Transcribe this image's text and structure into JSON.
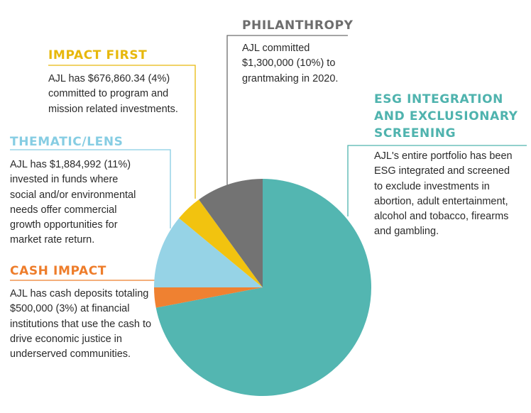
{
  "chart_data": {
    "type": "pie",
    "slices": [
      {
        "label": "ESG INTEGRATION AND EXCLUSIONARY SCREENING",
        "value": 72,
        "color": "#53b6b1",
        "text": "AJL's entire portfolio has been ESG integrated and screened to exclude investments in abortion, adult entertainment, alcohol and tobacco, firearms and gambling."
      },
      {
        "label": "CASH IMPACT",
        "value": 3,
        "color": "#ef8131",
        "text": "AJL has cash deposits totaling $500,000 (3%) at financial institutions that use the cash to drive economic justice in underserved communities."
      },
      {
        "label": "THEMATIC/LENS",
        "value": 11,
        "color": "#96d3e6",
        "text": "AJL has $1,884,992 (11%) invested in funds where social and/or environmental needs offer commercial growth opportunities for market rate return."
      },
      {
        "label": "IMPACT FIRST",
        "value": 4,
        "color": "#f2c30f",
        "text": "AJL has $676,860.34 (4%) committed to program and mission related investments."
      },
      {
        "label": "PHILANTHROPY",
        "value": 10,
        "color": "#737373",
        "text": "AJL committed $1,300,000 (10%) to grantmaking in 2020."
      }
    ]
  },
  "labels": {
    "philanthropy": {
      "heading": "PHILANTHROPY",
      "desc": "AJL committed $1,300,000 (10%) to grantmaking in 2020.",
      "color": "#6d6d6d"
    },
    "impact_first": {
      "heading": "IMPACT FIRST",
      "desc": "AJL has $676,860.34 (4%) committed to program and mission related investments.",
      "color": "#e7b80c"
    },
    "esg": {
      "heading": "ESG INTEGRATION AND EXCLUSIONARY SCREENING",
      "desc": "AJL's entire portfolio has been ESG integrated and screened to exclude investments in abortion, adult entertainment, alcohol and tobacco, firearms and gambling.",
      "color": "#4fb3ae"
    },
    "thematic": {
      "heading": "THEMATIC/LENS",
      "desc": "AJL has $1,884,992 (11%) invested in funds where social and/or environmental needs offer commercial growth opportunities for market rate return.",
      "color": "#86cde3"
    },
    "cash": {
      "heading": "CASH IMPACT",
      "desc": "AJL has cash deposits totaling $500,000 (3%) at financial institutions that use the cash to drive economic justice in underserved communities.",
      "color": "#ee7d2b"
    }
  }
}
